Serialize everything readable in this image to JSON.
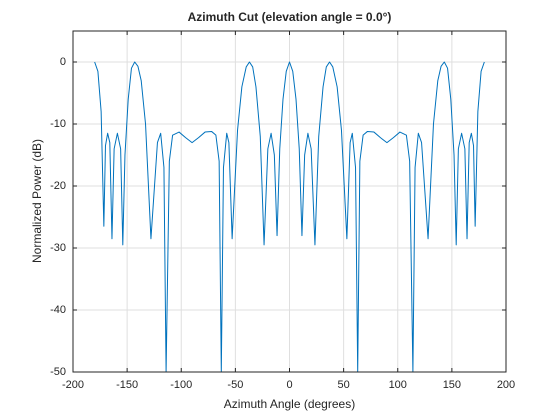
{
  "chart_data": {
    "type": "line",
    "title": "Azimuth Cut (elevation angle = 0.0°)",
    "xlabel": "Azimuth Angle (degrees)",
    "ylabel": "Normalized Power (dB)",
    "x": [
      -180,
      -177,
      -174,
      -171.5,
      -170,
      -168,
      -166,
      -164,
      -162,
      -159,
      -156,
      -154,
      -152,
      -149,
      -146,
      -143,
      -140,
      -137,
      -133,
      -128,
      -122,
      -119,
      -116,
      -114,
      -111,
      -108,
      -102,
      -96,
      -90,
      -84,
      -78,
      -72,
      -68,
      -65,
      -63,
      -61,
      -58,
      -56,
      -53,
      -48,
      -44,
      -40,
      -37,
      -34,
      -31,
      -27,
      -23.5,
      -20,
      -17,
      -14,
      -11.5,
      -9,
      -6,
      -3,
      0,
      3,
      6,
      9,
      11.5,
      14,
      17,
      20,
      23.5,
      27,
      31,
      34,
      37,
      40,
      44,
      48,
      53,
      56,
      58,
      61,
      63,
      65,
      68,
      72,
      78,
      84,
      90,
      96,
      102,
      108,
      111,
      114,
      116,
      119,
      122,
      128,
      133,
      137,
      140,
      143,
      146,
      149,
      152,
      154,
      156,
      159,
      162,
      164,
      166,
      168,
      170,
      171.5,
      174,
      177,
      180
    ],
    "values": [
      0,
      -1.5,
      -8,
      -26.5,
      -13.5,
      -11.5,
      -13,
      -28.5,
      -14,
      -11.5,
      -14,
      -29.5,
      -15,
      -6,
      -1,
      0,
      -0.7,
      -3,
      -10,
      -28.5,
      -13,
      -11.5,
      -17,
      -50,
      -16,
      -11.8,
      -11.3,
      -12.2,
      -13,
      -12.2,
      -11.3,
      -11.2,
      -11.8,
      -16,
      -50,
      -17,
      -11.5,
      -13,
      -28.5,
      -11,
      -4,
      -0.8,
      0,
      -0.8,
      -4,
      -12,
      -29.5,
      -14,
      -11.5,
      -15,
      -28,
      -14,
      -6,
      -1.5,
      0,
      -1.5,
      -6,
      -14,
      -28,
      -15,
      -11.5,
      -14,
      -29.5,
      -12,
      -4,
      -0.8,
      0,
      -0.8,
      -4,
      -11,
      -28.5,
      -13,
      -11.5,
      -17,
      -50,
      -16,
      -11.8,
      -11.2,
      -11.3,
      -12.2,
      -13,
      -12.2,
      -11.3,
      -11.8,
      -16,
      -50,
      -17,
      -11.5,
      -13,
      -28.5,
      -10,
      -3,
      -0.7,
      0,
      -1,
      -6,
      -15,
      -29.5,
      -14,
      -11.5,
      -14,
      -28.5,
      -13,
      -11.5,
      -13.5,
      -26.5,
      -8,
      -1.5,
      0
    ],
    "color": "#0072bd",
    "xlim": [
      -200,
      200
    ],
    "xticks": [
      -200,
      -150,
      -100,
      -50,
      0,
      50,
      100,
      150,
      200
    ],
    "ylim": [
      -50,
      5
    ],
    "yticks": [
      -50,
      -40,
      -30,
      -20,
      -10,
      0
    ],
    "grid": true
  }
}
